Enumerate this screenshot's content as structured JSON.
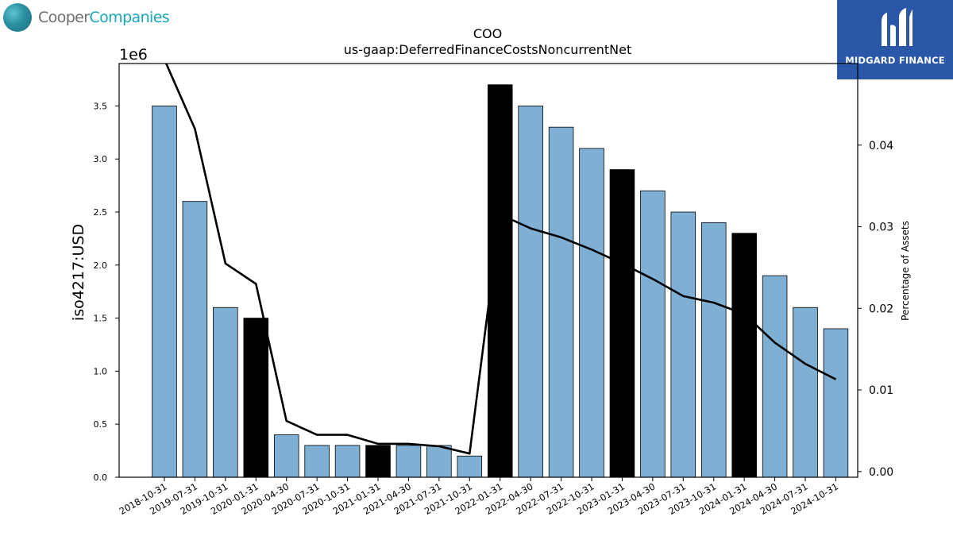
{
  "logos": {
    "left_word_1": "Cooper",
    "left_word_2": "Companies",
    "right_text": "MIDGARD FINANCE"
  },
  "chart_data": {
    "type": "bar",
    "title_line1": "COO",
    "title_line2": "us-gaap:DeferredFinanceCostsNoncurrentNet",
    "ylabel": "iso4217:USD",
    "y_offset_label": "1e6",
    "y2label": "Percentage of Assets",
    "categories": [
      "2018-10-31",
      "2019-07-31",
      "2019-10-31",
      "2020-01-31",
      "2020-04-30",
      "2020-07-31",
      "2020-10-31",
      "2021-01-31",
      "2021-04-30",
      "2021-07-31",
      "2021-10-31",
      "2022-01-31",
      "2022-04-30",
      "2022-07-31",
      "2022-10-31",
      "2023-01-31",
      "2023-04-30",
      "2023-07-31",
      "2023-10-31",
      "2024-01-31",
      "2024-04-30",
      "2024-07-31",
      "2024-10-31"
    ],
    "values": [
      3500000,
      2600000,
      1600000,
      1500000,
      400000,
      300000,
      300000,
      300000,
      300000,
      300000,
      200000,
      3700000,
      3500000,
      3300000,
      3100000,
      2900000,
      2700000,
      2500000,
      2400000,
      2300000,
      1900000,
      1600000,
      1400000
    ],
    "highlight": [
      false,
      false,
      false,
      true,
      false,
      false,
      false,
      true,
      false,
      false,
      false,
      true,
      false,
      false,
      false,
      true,
      false,
      false,
      false,
      true,
      false,
      false,
      false
    ],
    "y_ticks": [
      "0.0",
      "0.5",
      "1.0",
      "1.5",
      "2.0",
      "2.5",
      "3.0",
      "3.5"
    ],
    "ylim": [
      0,
      3.9
    ],
    "y2_ticks": [
      "0.00",
      "0.01",
      "0.02",
      "0.03",
      "0.04"
    ],
    "y2lim": [
      -0.0007,
      0.05
    ],
    "pct_series": [
      0.0505,
      0.042,
      0.0255,
      0.023,
      0.0062,
      0.0045,
      0.0045,
      0.0034,
      0.0034,
      0.0031,
      0.0022,
      0.0315,
      0.0298,
      0.0287,
      0.0272,
      0.0255,
      0.0236,
      0.0215,
      0.0207,
      0.0193,
      0.0158,
      0.0132,
      0.0113
    ],
    "colors": {
      "bar": "#7fb0d4",
      "highlight": "#000000",
      "line": "#000000",
      "edge": "#000000"
    },
    "grid": false,
    "legend": "none"
  }
}
